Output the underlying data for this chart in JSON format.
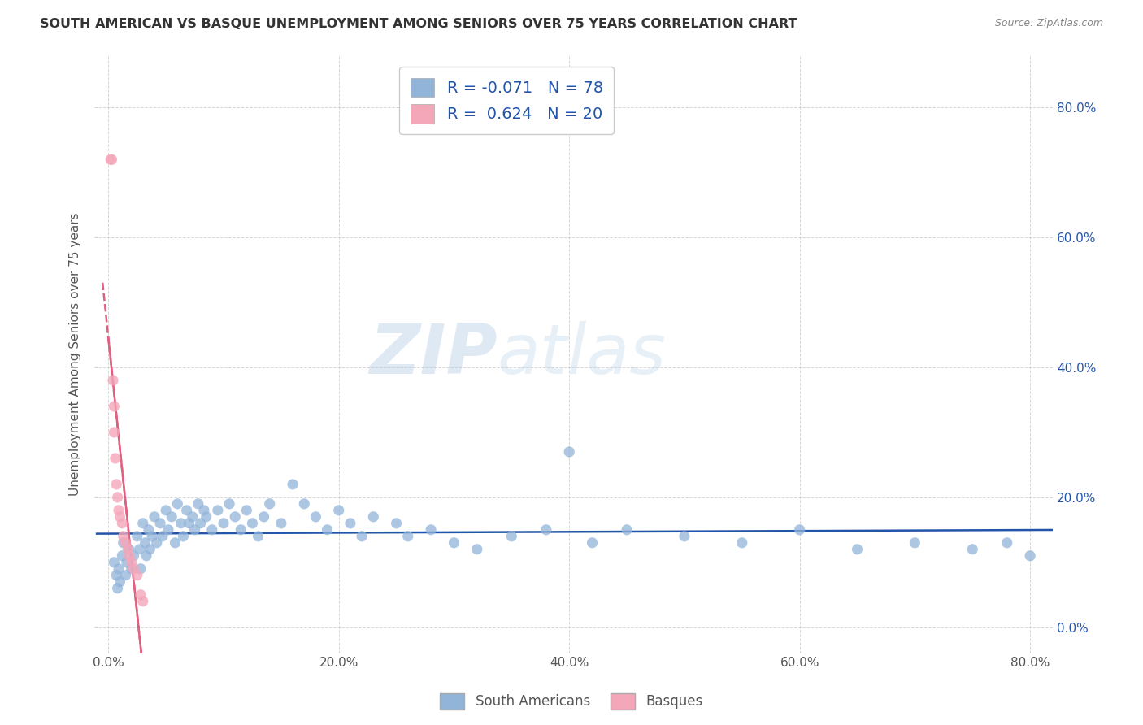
{
  "title": "SOUTH AMERICAN VS BASQUE UNEMPLOYMENT AMONG SENIORS OVER 75 YEARS CORRELATION CHART",
  "source": "Source: ZipAtlas.com",
  "ylabel": "Unemployment Among Seniors over 75 years",
  "watermark_zip": "ZIP",
  "watermark_atlas": "atlas",
  "blue_color": "#92b4d9",
  "pink_color": "#f4a7b9",
  "blue_line_color": "#2255aa",
  "pink_line_color": "#e06080",
  "R_blue": -0.071,
  "N_blue": 78,
  "R_pink": 0.624,
  "N_pink": 20,
  "blue_scatter_x": [
    0.005,
    0.007,
    0.008,
    0.009,
    0.01,
    0.012,
    0.013,
    0.015,
    0.016,
    0.018,
    0.02,
    0.022,
    0.025,
    0.027,
    0.028,
    0.03,
    0.032,
    0.033,
    0.035,
    0.036,
    0.038,
    0.04,
    0.042,
    0.045,
    0.047,
    0.05,
    0.052,
    0.055,
    0.058,
    0.06,
    0.063,
    0.065,
    0.068,
    0.07,
    0.073,
    0.075,
    0.078,
    0.08,
    0.083,
    0.085,
    0.09,
    0.095,
    0.1,
    0.105,
    0.11,
    0.115,
    0.12,
    0.125,
    0.13,
    0.135,
    0.14,
    0.15,
    0.16,
    0.17,
    0.18,
    0.19,
    0.2,
    0.21,
    0.22,
    0.23,
    0.25,
    0.26,
    0.28,
    0.3,
    0.32,
    0.35,
    0.38,
    0.4,
    0.42,
    0.45,
    0.5,
    0.55,
    0.6,
    0.65,
    0.7,
    0.75,
    0.78,
    0.8
  ],
  "blue_scatter_y": [
    0.1,
    0.08,
    0.06,
    0.09,
    0.07,
    0.11,
    0.13,
    0.08,
    0.1,
    0.12,
    0.09,
    0.11,
    0.14,
    0.12,
    0.09,
    0.16,
    0.13,
    0.11,
    0.15,
    0.12,
    0.14,
    0.17,
    0.13,
    0.16,
    0.14,
    0.18,
    0.15,
    0.17,
    0.13,
    0.19,
    0.16,
    0.14,
    0.18,
    0.16,
    0.17,
    0.15,
    0.19,
    0.16,
    0.18,
    0.17,
    0.15,
    0.18,
    0.16,
    0.19,
    0.17,
    0.15,
    0.18,
    0.16,
    0.14,
    0.17,
    0.19,
    0.16,
    0.22,
    0.19,
    0.17,
    0.15,
    0.18,
    0.16,
    0.14,
    0.17,
    0.16,
    0.14,
    0.15,
    0.13,
    0.12,
    0.14,
    0.15,
    0.27,
    0.13,
    0.15,
    0.14,
    0.13,
    0.15,
    0.12,
    0.13,
    0.12,
    0.13,
    0.11
  ],
  "pink_scatter_x": [
    0.002,
    0.003,
    0.004,
    0.005,
    0.005,
    0.006,
    0.007,
    0.008,
    0.009,
    0.01,
    0.012,
    0.013,
    0.015,
    0.017,
    0.018,
    0.02,
    0.022,
    0.025,
    0.028,
    0.03
  ],
  "pink_scatter_y": [
    0.72,
    0.72,
    0.38,
    0.34,
    0.3,
    0.26,
    0.22,
    0.2,
    0.18,
    0.17,
    0.16,
    0.14,
    0.13,
    0.12,
    0.11,
    0.1,
    0.09,
    0.08,
    0.05,
    0.04
  ]
}
